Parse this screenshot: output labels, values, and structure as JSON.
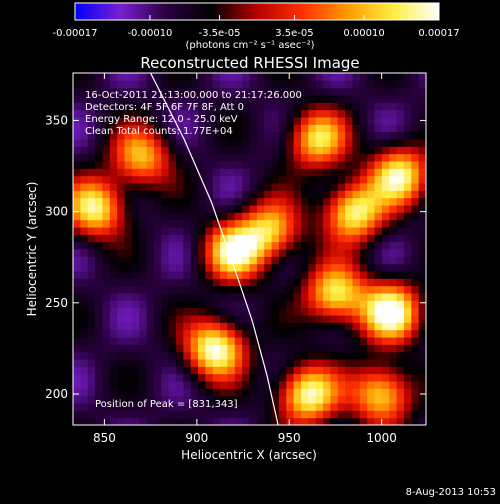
{
  "title": "Reconstructed RHESSI Image",
  "colorbar": {
    "tick_labels": [
      "-0.00017",
      "-0.00010",
      "-3.5e-05",
      "3.5e-05",
      "0.00010",
      "0.00017"
    ],
    "tick_values": [
      -0.00017,
      -0.0001,
      -3.5e-05,
      3.5e-05,
      0.0001,
      0.00017
    ],
    "range": [
      -0.00017,
      0.00017
    ],
    "units_label": "(photons cm⁻² s⁻¹ asec⁻²)",
    "colors": [
      "#0000ff",
      "#7a1fd0",
      "#2a0040",
      "#000000",
      "#b80000",
      "#ff3000",
      "#ff9a00",
      "#ffee40",
      "#ffffff"
    ]
  },
  "annotations": {
    "time": "16-Oct-2011 21:13:00.000 to 21:17:26.000",
    "detectors": "Detectors: 4F 5F 6F 7F 8F, Att 0",
    "energy": "Energy Range: 12.0 - 25.0 keV",
    "clean": "Clean    Total counts: 1.77E+04",
    "peak": "Position of Peak = [831,343]"
  },
  "footer_date": "8-Aug-2013 10:53",
  "chart_data": {
    "type": "heatmap",
    "title": "Reconstructed RHESSI Image",
    "xlabel": "Heliocentric X (arcsec)",
    "ylabel": "Heliocentric Y (arcsec)",
    "xlim": [
      833,
      1024
    ],
    "ylim": [
      183,
      376
    ],
    "x_ticks": [
      850,
      900,
      950,
      1000
    ],
    "y_ticks": [
      200,
      250,
      300,
      350
    ],
    "colormap": "blue-purple-black-red-yellow-white",
    "limb_curve": [
      [
        875,
        376
      ],
      [
        893,
        340
      ],
      [
        908,
        305
      ],
      [
        920,
        270
      ],
      [
        930,
        240
      ],
      [
        938,
        210
      ],
      [
        944,
        183
      ]
    ],
    "bright_regions": [
      {
        "x": 845,
        "y": 302,
        "intensity": 0.00014
      },
      {
        "x": 910,
        "y": 225,
        "intensity": 0.00017
      },
      {
        "x": 920,
        "y": 278,
        "intensity": 0.00014
      },
      {
        "x": 975,
        "y": 255,
        "intensity": 0.00014
      },
      {
        "x": 1005,
        "y": 245,
        "intensity": 0.00017
      },
      {
        "x": 985,
        "y": 300,
        "intensity": 0.00015
      },
      {
        "x": 965,
        "y": 340,
        "intensity": 0.00012
      },
      {
        "x": 1010,
        "y": 320,
        "intensity": 0.00014
      },
      {
        "x": 960,
        "y": 200,
        "intensity": 0.00016
      },
      {
        "x": 1000,
        "y": 200,
        "intensity": 0.00013
      },
      {
        "x": 870,
        "y": 330,
        "intensity": 0.0001
      },
      {
        "x": 940,
        "y": 290,
        "intensity": 0.00011
      }
    ]
  }
}
